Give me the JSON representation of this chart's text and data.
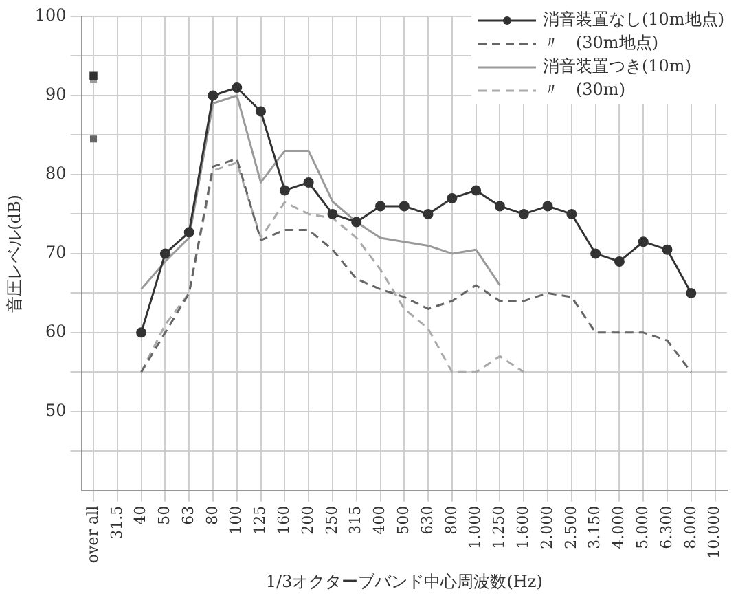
{
  "chart_data": {
    "type": "line",
    "xlabel": "1/3オクターブバンド中心周波数(Hz)",
    "ylabel": "音圧レベル(dB)",
    "categories": [
      "over all",
      "31.5",
      "40",
      "50",
      "63",
      "80",
      "100",
      "125",
      "160",
      "200",
      "250",
      "315",
      "400",
      "500",
      "630",
      "800",
      "1.000",
      "1.250",
      "1.600",
      "2.000",
      "2.500",
      "3.150",
      "4.000",
      "5.000",
      "6.300",
      "8.000",
      "10.000"
    ],
    "series": [
      {
        "name": "消音装置なし(10m地点)",
        "color": "#333333",
        "marker": "circle",
        "line_style": "solid",
        "values": [
          92.5,
          null,
          60,
          70,
          72.7,
          90,
          91,
          88,
          78,
          79,
          75,
          74,
          76,
          76,
          75,
          77,
          78,
          76,
          75,
          76,
          75,
          70,
          69,
          71.5,
          70.5,
          65,
          null
        ]
      },
      {
        "name": "〃　(30m地点)",
        "color": "#666666",
        "marker": "none",
        "line_style": "dashed",
        "values": [
          84.5,
          null,
          55,
          60,
          65,
          81,
          82,
          71.7,
          73,
          73,
          70.5,
          66.8,
          65.5,
          64.5,
          63,
          64,
          66,
          64,
          64,
          65,
          64.5,
          60,
          60,
          60,
          59,
          55,
          null
        ]
      },
      {
        "name": "消音装置つき(10m)",
        "color": "#9a9a9a",
        "marker": "none",
        "line_style": "solid",
        "values": [
          92,
          null,
          65.5,
          69,
          72,
          89,
          90,
          79,
          83,
          83,
          76.6,
          74,
          72,
          71.5,
          71,
          70,
          70.5,
          66,
          null,
          null,
          null,
          null,
          null,
          null,
          null,
          null,
          null
        ]
      },
      {
        "name": "〃　(30m)",
        "color": "#aaaaaa",
        "marker": "none",
        "line_style": "dashed",
        "values": [
          null,
          null,
          55,
          61,
          65,
          80.5,
          81.5,
          72,
          76.5,
          75,
          74.5,
          72,
          68,
          63,
          60.5,
          55,
          55,
          57,
          55,
          null,
          null,
          null,
          null,
          null,
          null,
          null,
          null
        ]
      }
    ],
    "ylim": [
      40,
      100
    ],
    "yticks": [
      {
        "value": 45,
        "label": null
      },
      50,
      {
        "value": 55,
        "label": null
      },
      60,
      {
        "value": 65,
        "label": null
      },
      70,
      {
        "value": 75,
        "label": null
      },
      80,
      {
        "value": 85,
        "label": null
      },
      90,
      {
        "value": 95,
        "label": null
      },
      100
    ],
    "grid": true,
    "legend": "top right"
  }
}
